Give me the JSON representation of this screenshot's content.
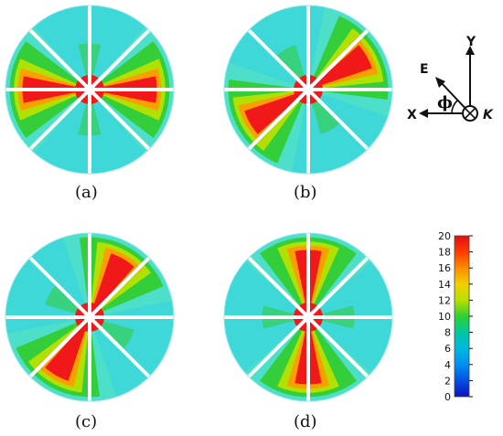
{
  "panels": [
    {
      "id": "a",
      "label": "(a)",
      "orientation_deg": 0
    },
    {
      "id": "b",
      "label": "(b)",
      "orientation_deg": 30
    },
    {
      "id": "c",
      "label": "(c)",
      "orientation_deg": 60
    },
    {
      "id": "d",
      "label": "(d)",
      "orientation_deg": 90
    }
  ],
  "coordinate_system": {
    "x_label": "X",
    "y_label": "Y",
    "e_label": "E",
    "phi_label": "ϕ",
    "k_label": "K"
  },
  "colorbar": {
    "min": 0,
    "max": 20,
    "ticks": [
      "20",
      "18",
      "16",
      "14",
      "12",
      "10",
      "8",
      "6",
      "4",
      "2",
      "0"
    ],
    "colors": [
      "#e01010",
      "#ff3a00",
      "#ff8c00",
      "#f2d000",
      "#b8e000",
      "#30d030",
      "#00c8a0",
      "#00b8e0",
      "#0090f0",
      "#0050e0",
      "#1010c0"
    ]
  },
  "colors": {
    "hot": "#f01818",
    "green": "#33cc33",
    "cyan": "#3fd8d8",
    "slot": "#ffffff"
  }
}
